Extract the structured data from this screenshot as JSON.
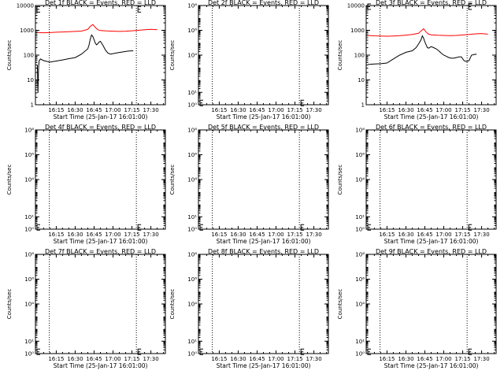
{
  "time_axis": {
    "tick_labels": [
      "16:15",
      "16:30",
      "16:45",
      "17:00",
      "17:15",
      "17:30"
    ],
    "tick_minutes": [
      15,
      30,
      45,
      60,
      75,
      90
    ],
    "range_minutes": [
      -1.5,
      101.5
    ],
    "vlines_minutes": [
      9.5,
      78.5
    ],
    "xlabel": "Start Time (25-Jan-17 16:01:00)"
  },
  "colors": {
    "events": "#000000",
    "lld": "#ff0000",
    "axis": "#000000"
  },
  "chart_data": [
    {
      "type": "line",
      "title": "Det 1f BLACK = Events, RED = LLD",
      "ylabel": "Counts/sec",
      "yscale": "log",
      "ylim": [
        1,
        10000
      ],
      "ytick_values": [
        1,
        10,
        100,
        1000,
        10000
      ],
      "ytick_labels": [
        "1",
        "10",
        "100",
        "1000",
        "10000"
      ],
      "series": [
        {
          "key": "lld",
          "x": [
            0,
            5,
            10,
            15,
            20,
            25,
            30,
            35,
            40,
            42,
            44,
            46,
            48,
            50,
            55,
            60,
            65,
            70,
            75,
            80,
            85,
            90,
            95
          ],
          "y": [
            820,
            800,
            810,
            840,
            860,
            880,
            900,
            930,
            1100,
            1450,
            1700,
            1300,
            1050,
            980,
            940,
            920,
            900,
            920,
            960,
            1000,
            1050,
            1100,
            1050
          ]
        },
        {
          "key": "events",
          "x": [
            0,
            0.5,
            1,
            1.5,
            2.5,
            5,
            10,
            15,
            20,
            25,
            30,
            35,
            40,
            41,
            42,
            43,
            44,
            45,
            46,
            47,
            48,
            49,
            50,
            52,
            54,
            56,
            58,
            60,
            62,
            64,
            66,
            68,
            70,
            72,
            74,
            76
          ],
          "y": [
            40,
            3,
            35,
            60,
            70,
            60,
            52,
            58,
            64,
            72,
            80,
            110,
            180,
            260,
            450,
            650,
            560,
            420,
            300,
            260,
            290,
            340,
            360,
            250,
            160,
            120,
            110,
            115,
            120,
            125,
            130,
            135,
            140,
            145,
            148,
            150
          ]
        }
      ],
      "marker_y": 7000
    },
    {
      "type": "line",
      "title": "Det 2f BLACK = Events, RED = LLD",
      "ylabel": "Counts/sec",
      "yscale": "log",
      "ylim": [
        1,
        100000000
      ],
      "ytick_values": [
        1,
        10,
        10000,
        1000000,
        100000000
      ],
      "ytick_labels": [
        "10⁰",
        "10¹",
        "10⁴",
        "10⁶",
        "10⁸"
      ],
      "series": [],
      "marker_y": 1.4
    },
    {
      "type": "line",
      "title": "Det 3f BLACK = Events, RED = LLD",
      "ylabel": "Counts/sec",
      "yscale": "log",
      "ylim": [
        1,
        10000
      ],
      "ytick_values": [
        1,
        10,
        100,
        1000,
        10000
      ],
      "ytick_labels": [
        "1",
        "10",
        "100",
        "1000",
        "10000"
      ],
      "series": [
        {
          "key": "lld",
          "x": [
            0,
            5,
            10,
            15,
            20,
            25,
            30,
            35,
            40,
            42,
            44,
            46,
            48,
            50,
            55,
            60,
            65,
            70,
            75,
            80,
            85,
            90,
            95
          ],
          "y": [
            620,
            600,
            590,
            580,
            590,
            610,
            640,
            680,
            760,
            950,
            1150,
            850,
            700,
            660,
            630,
            620,
            610,
            620,
            650,
            680,
            720,
            740,
            700
          ]
        },
        {
          "key": "events",
          "x": [
            0,
            5,
            10,
            15,
            20,
            25,
            30,
            35,
            38,
            40,
            42,
            43,
            44,
            45,
            46,
            47,
            48,
            50,
            52,
            54,
            56,
            58,
            60,
            62,
            64,
            66,
            68,
            70,
            72,
            74,
            76,
            78,
            80,
            82,
            84,
            86
          ],
          "y": [
            42,
            44,
            45,
            48,
            70,
            100,
            130,
            150,
            200,
            280,
            420,
            600,
            480,
            340,
            260,
            200,
            190,
            220,
            200,
            180,
            150,
            120,
            100,
            90,
            80,
            75,
            75,
            80,
            85,
            85,
            60,
            55,
            60,
            100,
            105,
            110
          ]
        }
      ],
      "marker_y": 9000
    },
    {
      "type": "line",
      "title": "Det 4f BLACK = Events, RED = LLD",
      "ylabel": "Counts/sec",
      "yscale": "log",
      "ylim": [
        1,
        100000000
      ],
      "ytick_values": [
        1,
        10,
        10000,
        1000000,
        100000000
      ],
      "ytick_labels": [
        "10⁰",
        "10¹",
        "10⁴",
        "10⁶",
        "10⁸"
      ],
      "series": [],
      "marker_y": 1.4
    },
    {
      "type": "line",
      "title": "Det 5f BLACK = Events, RED = LLD",
      "ylabel": "Counts/sec",
      "yscale": "log",
      "ylim": [
        1,
        100000000
      ],
      "ytick_values": [
        1,
        10,
        10000,
        1000000,
        100000000
      ],
      "ytick_labels": [
        "10⁰",
        "10¹",
        "10⁴",
        "10⁶",
        "10⁸"
      ],
      "series": [],
      "marker_y": 1.4
    },
    {
      "type": "line",
      "title": "Det 6f BLACK = Events, RED = LLD",
      "ylabel": "Counts/sec",
      "yscale": "log",
      "ylim": [
        1,
        100000000
      ],
      "ytick_values": [
        1,
        10,
        10000,
        1000000,
        100000000
      ],
      "ytick_labels": [
        "10⁰",
        "10¹",
        "10⁴",
        "10⁶",
        "10⁸"
      ],
      "series": [],
      "marker_y": 1.4
    },
    {
      "type": "line",
      "title": "Det 7f BLACK = Events, RED = LLD",
      "ylabel": "Counts/sec",
      "yscale": "log",
      "ylim": [
        1,
        100000000
      ],
      "ytick_values": [
        1,
        10,
        10000,
        1000000,
        100000000
      ],
      "ytick_labels": [
        "10⁰",
        "10¹",
        "10⁴",
        "10⁶",
        "10⁸"
      ],
      "series": [],
      "marker_y": 1.4
    },
    {
      "type": "line",
      "title": "Det 8f BLACK = Events, RED = LLD",
      "ylabel": "Counts/sec",
      "yscale": "log",
      "ylim": [
        1,
        100000000
      ],
      "ytick_values": [
        1,
        10,
        10000,
        1000000,
        100000000
      ],
      "ytick_labels": [
        "10⁰",
        "10¹",
        "10⁴",
        "10⁶",
        "10⁸"
      ],
      "series": [],
      "marker_y": 1.4
    },
    {
      "type": "line",
      "title": "Det 9f BLACK = Events, RED = LLD",
      "ylabel": "Counts/sec",
      "yscale": "log",
      "ylim": [
        1,
        100000000
      ],
      "ytick_values": [
        1,
        10,
        10000,
        1000000,
        100000000
      ],
      "ytick_labels": [
        "10⁰",
        "10¹",
        "10⁴",
        "10⁶",
        "10⁸"
      ],
      "series": [],
      "marker_y": 1.4
    }
  ]
}
